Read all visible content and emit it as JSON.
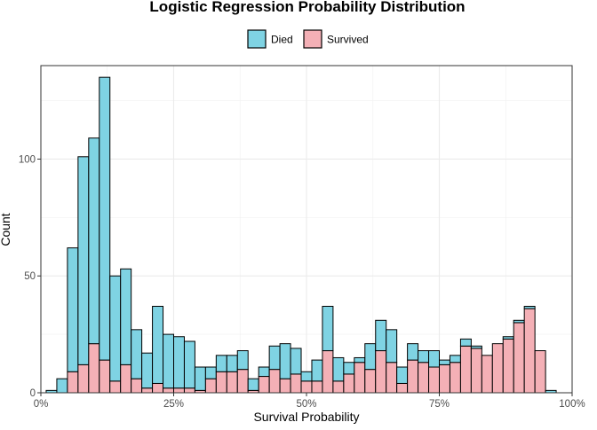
{
  "chart_data": {
    "type": "histogram",
    "title": "Logistic Regression Probability Distribution",
    "xlabel": "Survival Probability",
    "ylabel": "Count",
    "xlim": [
      0,
      1
    ],
    "ylim": [
      0,
      140
    ],
    "x_ticks": [
      {
        "value": 0,
        "label": "0%"
      },
      {
        "value": 0.25,
        "label": "25%"
      },
      {
        "value": 0.5,
        "label": "50%"
      },
      {
        "value": 0.75,
        "label": "75%"
      },
      {
        "value": 1,
        "label": "100%"
      }
    ],
    "y_ticks": [
      {
        "value": 0,
        "label": "0"
      },
      {
        "value": 50,
        "label": "50"
      },
      {
        "value": 100,
        "label": "100"
      }
    ],
    "stacked": true,
    "grid": true,
    "legend_position": "top",
    "bin_width": 0.02,
    "bin_starts": [
      0.01,
      0.03,
      0.05,
      0.07,
      0.09,
      0.11,
      0.13,
      0.15,
      0.17,
      0.19,
      0.21,
      0.23,
      0.25,
      0.27,
      0.29,
      0.31,
      0.33,
      0.35,
      0.37,
      0.39,
      0.41,
      0.43,
      0.45,
      0.47,
      0.49,
      0.51,
      0.53,
      0.55,
      0.57,
      0.59,
      0.61,
      0.63,
      0.65,
      0.67,
      0.69,
      0.71,
      0.73,
      0.75,
      0.77,
      0.79,
      0.81,
      0.83,
      0.85,
      0.87,
      0.89,
      0.91,
      0.93,
      0.95
    ],
    "series": [
      {
        "name": "Died",
        "color": "#7fd3e3",
        "values": [
          1,
          6,
          53,
          89,
          88,
          121,
          45,
          41,
          21,
          15,
          33,
          23,
          22,
          20,
          10,
          5,
          7,
          7,
          8,
          5,
          4,
          10,
          15,
          11,
          4,
          9,
          19,
          10,
          5,
          2,
          11,
          13,
          14,
          7,
          7,
          5,
          7,
          2,
          3,
          3,
          1,
          0,
          0,
          1,
          1,
          1,
          0,
          1
        ]
      },
      {
        "name": "Survived",
        "color": "#f4b0b6",
        "values": [
          0,
          0,
          9,
          12,
          21,
          14,
          5,
          12,
          6,
          2,
          4,
          2,
          2,
          2,
          1,
          6,
          9,
          9,
          10,
          1,
          7,
          10,
          6,
          8,
          5,
          5,
          18,
          5,
          8,
          13,
          10,
          18,
          13,
          4,
          14,
          13,
          11,
          12,
          13,
          20,
          19,
          16,
          21,
          23,
          30,
          36,
          18,
          0
        ]
      }
    ]
  }
}
